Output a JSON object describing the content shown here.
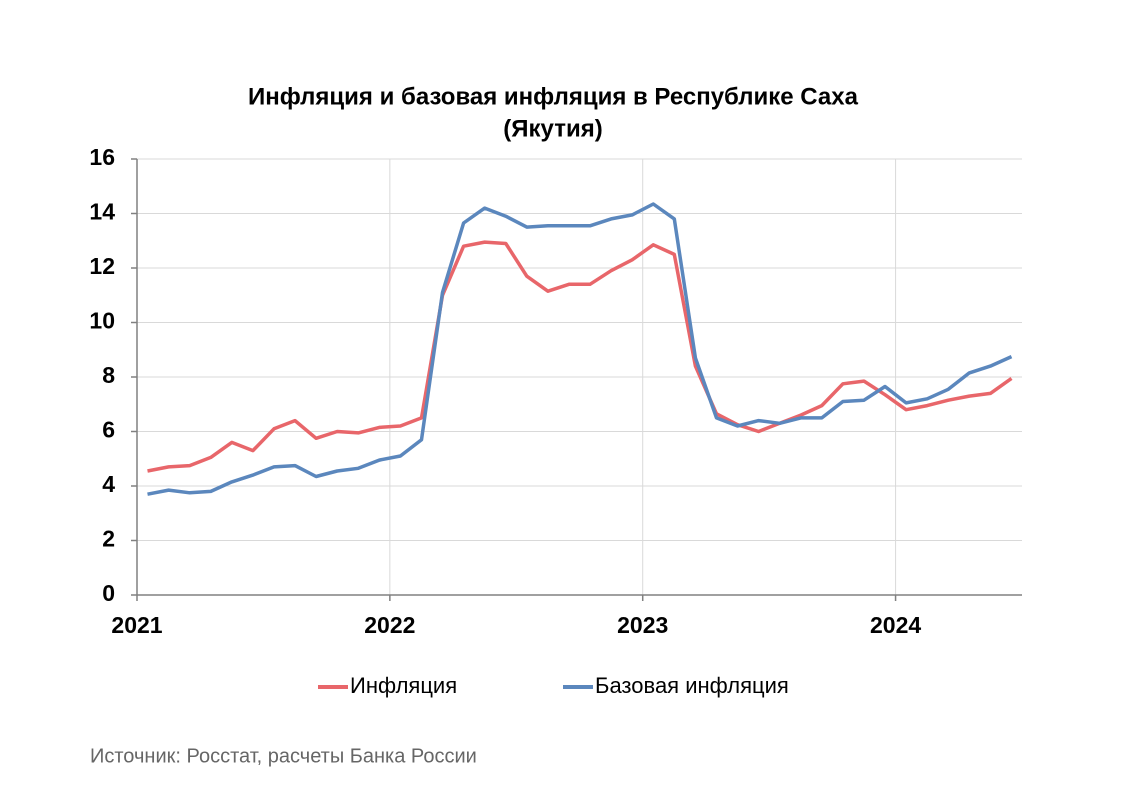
{
  "chart_data": {
    "type": "line",
    "title": [
      "Инфляция и базовая инфляция в Республике Саха",
      "(Якутия)"
    ],
    "source": "Источник: Росстат, расчеты Банка России",
    "categories": [
      "2021",
      null,
      null,
      null,
      null,
      null,
      null,
      null,
      null,
      null,
      null,
      null,
      "2022",
      null,
      null,
      null,
      null,
      null,
      null,
      null,
      null,
      null,
      null,
      null,
      "2023",
      null,
      null,
      null,
      null,
      null,
      null,
      null,
      null,
      null,
      null,
      null,
      "2024",
      null,
      null,
      null,
      null,
      null
    ],
    "series": [
      {
        "name": "Инфляция",
        "color": "#e8666a",
        "values": [
          4.55,
          4.7,
          4.75,
          5.05,
          5.6,
          5.3,
          6.1,
          6.4,
          5.75,
          6.0,
          5.95,
          6.15,
          6.2,
          6.5,
          11.0,
          12.8,
          12.95,
          12.9,
          11.7,
          11.15,
          11.4,
          11.4,
          11.9,
          12.3,
          12.85,
          12.5,
          8.4,
          6.65,
          6.25,
          6.0,
          6.3,
          6.6,
          6.95,
          7.75,
          7.85,
          7.35,
          6.8,
          6.95,
          7.15,
          7.3,
          7.4,
          7.95
        ]
      },
      {
        "name": "Базовая инфляция",
        "color": "#5b87bd",
        "values": [
          3.7,
          3.85,
          3.75,
          3.8,
          4.15,
          4.4,
          4.7,
          4.75,
          4.35,
          4.55,
          4.65,
          4.95,
          5.1,
          5.7,
          11.1,
          13.65,
          14.2,
          13.9,
          13.5,
          13.55,
          13.55,
          13.55,
          13.8,
          13.95,
          14.35,
          13.8,
          8.7,
          6.5,
          6.2,
          6.4,
          6.3,
          6.5,
          6.5,
          7.1,
          7.15,
          7.65,
          7.05,
          7.2,
          7.55,
          8.15,
          8.4,
          8.75
        ]
      }
    ],
    "ylim": [
      0,
      16
    ],
    "yticks": [
      0,
      2,
      4,
      6,
      8,
      10,
      12,
      14,
      16
    ],
    "grid": true,
    "legend": "bottom"
  }
}
